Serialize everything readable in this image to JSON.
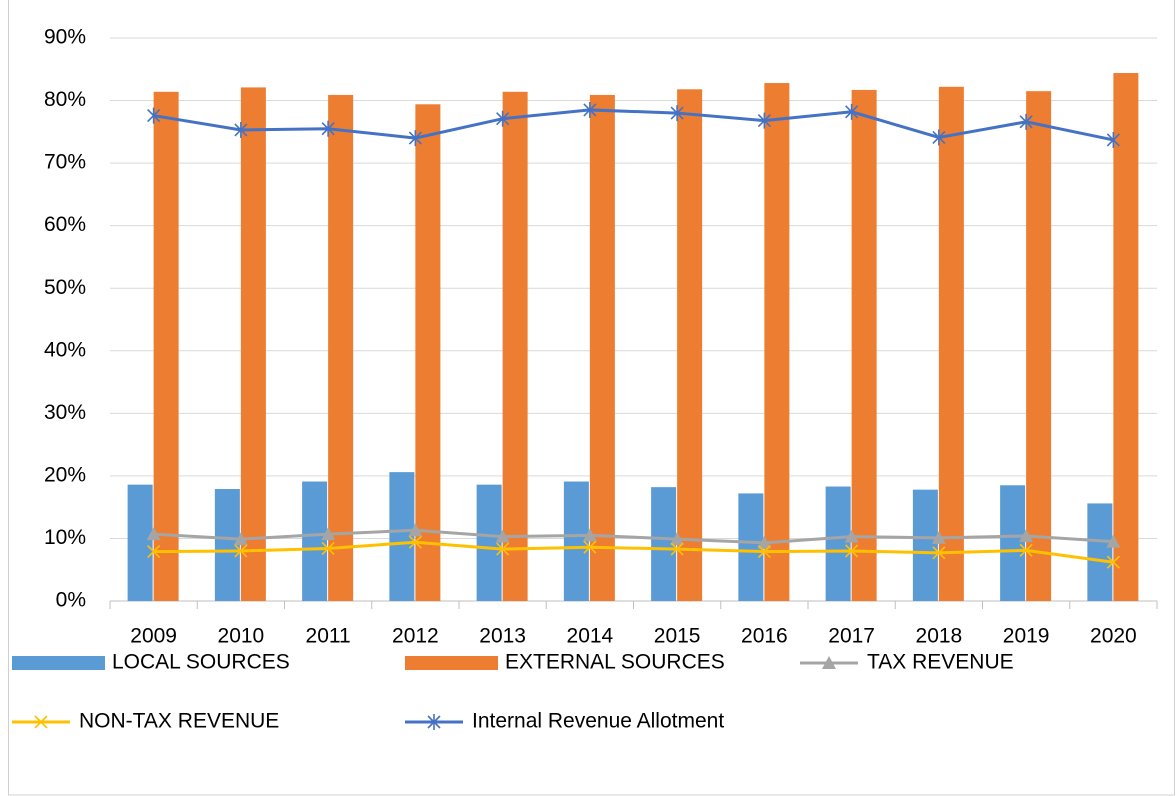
{
  "chart_data": {
    "type": "bar-line",
    "categories": [
      "2009",
      "2010",
      "2011",
      "2012",
      "2013",
      "2014",
      "2015",
      "2016",
      "2017",
      "2018",
      "2019",
      "2020"
    ],
    "series": [
      {
        "name": "LOCAL SOURCES",
        "kind": "bar",
        "color": "#5b9bd5",
        "values": [
          18.6,
          17.9,
          19.1,
          20.6,
          18.6,
          19.1,
          18.2,
          17.2,
          18.3,
          17.8,
          18.5,
          15.6
        ]
      },
      {
        "name": "EXTERNAL SOURCES",
        "kind": "bar",
        "color": "#ed7d31",
        "values": [
          81.4,
          82.1,
          80.9,
          79.4,
          81.4,
          80.9,
          81.8,
          82.8,
          81.7,
          82.2,
          81.5,
          84.4
        ]
      },
      {
        "name": "TAX REVENUE",
        "kind": "line",
        "marker": "triangle",
        "color": "#a5a5a5",
        "values": [
          10.7,
          9.9,
          10.7,
          11.3,
          10.3,
          10.5,
          9.9,
          9.3,
          10.3,
          10.1,
          10.4,
          9.5
        ]
      },
      {
        "name": "NON-TAX REVENUE",
        "kind": "line",
        "marker": "x",
        "color": "#ffc000",
        "values": [
          7.9,
          8.0,
          8.4,
          9.4,
          8.3,
          8.6,
          8.3,
          7.9,
          8.0,
          7.7,
          8.1,
          6.2
        ]
      },
      {
        "name": "Internal Revenue Allotment",
        "kind": "line",
        "marker": "star",
        "color": "#4472c4",
        "values": [
          77.6,
          75.3,
          75.5,
          74.0,
          77.1,
          78.5,
          78.0,
          76.8,
          78.2,
          74.1,
          76.6,
          73.7
        ]
      }
    ],
    "ylim": [
      0,
      90
    ],
    "yticks": [
      {
        "value": 0,
        "label": "0%"
      },
      {
        "value": 10,
        "label": "10%"
      },
      {
        "value": 20,
        "label": "20%"
      },
      {
        "value": 30,
        "label": "30%"
      },
      {
        "value": 40,
        "label": "40%"
      },
      {
        "value": 50,
        "label": "50%"
      },
      {
        "value": 60,
        "label": "60%"
      },
      {
        "value": 70,
        "label": "70%"
      },
      {
        "value": 80,
        "label": "80%"
      },
      {
        "value": 90,
        "label": "90%"
      }
    ],
    "grid": true
  }
}
